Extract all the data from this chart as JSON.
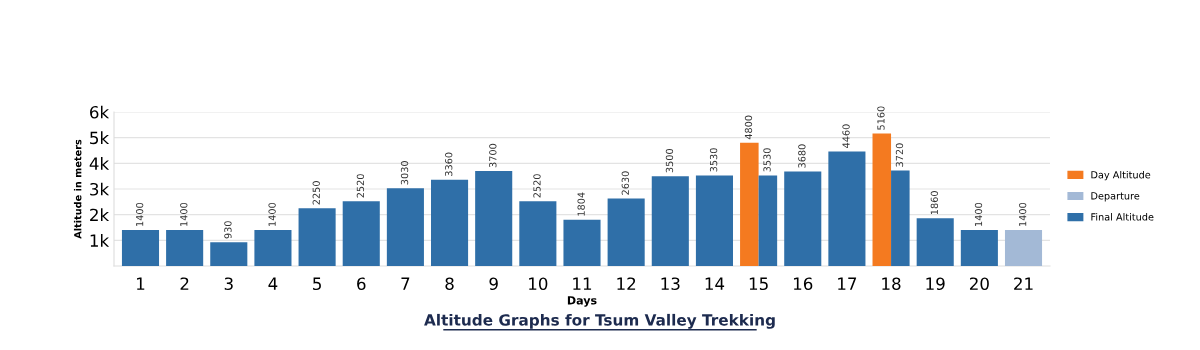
{
  "chart_data": {
    "type": "bar",
    "title": "Altitude Graphs for Tsum Valley Trekking",
    "xlabel": "Days",
    "ylabel": "Altitude in meters",
    "categories": [
      "1",
      "2",
      "3",
      "4",
      "5",
      "6",
      "7",
      "8",
      "9",
      "10",
      "11",
      "12",
      "13",
      "14",
      "15",
      "16",
      "17",
      "18",
      "19",
      "20",
      "21"
    ],
    "series": [
      {
        "name": "Day Altitude",
        "color": "#f47a20",
        "values": [
          null,
          null,
          null,
          null,
          null,
          null,
          null,
          null,
          null,
          null,
          null,
          null,
          null,
          null,
          4800,
          null,
          null,
          5160,
          null,
          null,
          null
        ]
      },
      {
        "name": "Departure",
        "color": "#a3b9d6",
        "values": [
          null,
          null,
          null,
          null,
          null,
          null,
          null,
          null,
          null,
          null,
          null,
          null,
          null,
          null,
          null,
          null,
          null,
          null,
          null,
          null,
          1400
        ]
      },
      {
        "name": "Final Altitude",
        "color": "#2f6fa8",
        "values": [
          1400,
          1400,
          930,
          1400,
          2250,
          2520,
          3030,
          3360,
          3700,
          2520,
          1804,
          2630,
          3500,
          3530,
          3530,
          3680,
          4460,
          3720,
          1860,
          1400,
          null
        ]
      }
    ],
    "ylim": [
      0,
      6000
    ],
    "yticks": [
      {
        "value": 1000,
        "label": "1k"
      },
      {
        "value": 2000,
        "label": "2k"
      },
      {
        "value": 3000,
        "label": "3k"
      },
      {
        "value": 4000,
        "label": "4k"
      },
      {
        "value": 5000,
        "label": "5k"
      },
      {
        "value": 6000,
        "label": "6k"
      }
    ],
    "grid": "y",
    "legend": "right",
    "data_labels": true
  }
}
